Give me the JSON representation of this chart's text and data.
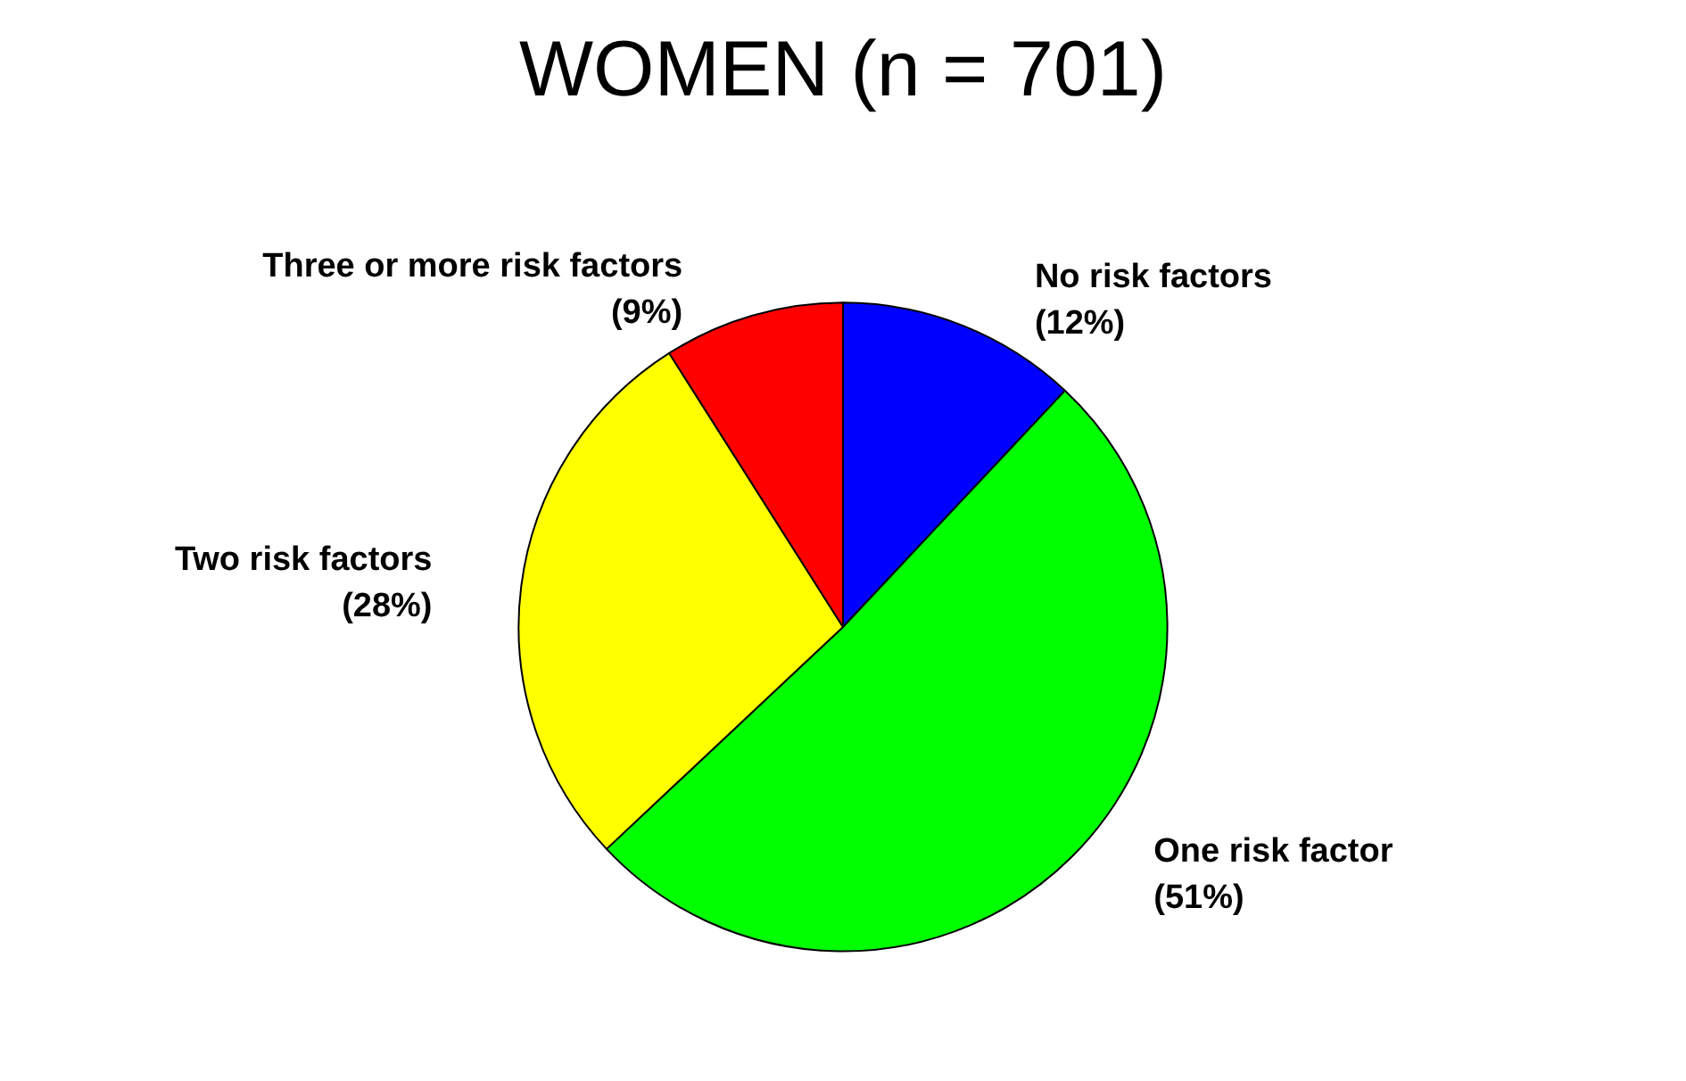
{
  "chart_data": {
    "type": "pie",
    "title": "WOMEN (n = 701)",
    "categories": [
      "No risk factors",
      "One risk factor",
      "Two risk factors",
      "Three or more risk factors"
    ],
    "values": [
      12,
      51,
      28,
      9
    ],
    "colors": [
      "#0000ff",
      "#00ff00",
      "#ffff00",
      "#ff0000"
    ],
    "value_labels": [
      "(12%)",
      "(51%)",
      "(28%)",
      "(9%)"
    ],
    "legend": false
  }
}
